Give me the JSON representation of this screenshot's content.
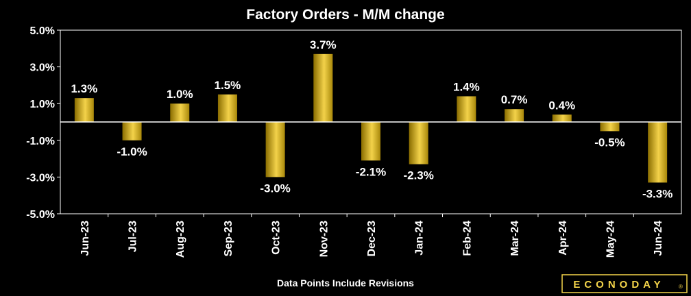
{
  "chart_data": {
    "type": "bar",
    "title": "Factory Orders - M/M change",
    "xlabel": "Data Points Include Revisions",
    "ylabel": "",
    "categories": [
      "Jun-23",
      "Jul-23",
      "Aug-23",
      "Sep-23",
      "Oct-23",
      "Nov-23",
      "Dec-23",
      "Jan-24",
      "Feb-24",
      "Mar-24",
      "Apr-24",
      "May-24",
      "Jun-24"
    ],
    "values": [
      1.3,
      -1.0,
      1.0,
      1.5,
      -3.0,
      3.7,
      -2.1,
      -2.3,
      1.4,
      0.7,
      0.4,
      -0.5,
      -3.3
    ],
    "data_labels": [
      "1.3%",
      "-1.0%",
      "1.0%",
      "1.5%",
      "-3.0%",
      "3.7%",
      "-2.1%",
      "-2.3%",
      "1.4%",
      "0.7%",
      "0.4%",
      "-0.5%",
      "-3.3%"
    ],
    "y_ticks": [
      5.0,
      3.0,
      1.0,
      -1.0,
      -3.0,
      -5.0
    ],
    "y_tick_labels": [
      "5.0%",
      "3.0%",
      "1.0%",
      "-1.0%",
      "-3.0%",
      "-5.0%"
    ],
    "ylim": [
      -5.0,
      5.0
    ],
    "grid": false,
    "legend": "none",
    "colors": {
      "background": "#000000",
      "bar_light": "#f3d24a",
      "bar_dark": "#8a6d00",
      "axis": "#ffffff"
    }
  },
  "brand": {
    "logo_text": "ECONODAY",
    "registered": "®"
  }
}
